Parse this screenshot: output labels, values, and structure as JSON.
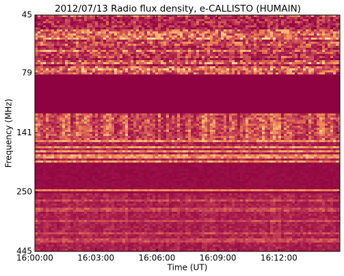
{
  "chart_data": {
    "type": "spectrogram",
    "title": "2012/07/13  Radio flux density, e-CALLISTO (HUMAIN)",
    "xlabel": "Time (UT)",
    "ylabel": "Frequency (MHz)",
    "xlim": [
      "16:00:00",
      "16:15:00"
    ],
    "xticks": [
      "16:00:00",
      "16:03:00",
      "16:06:00",
      "16:09:00",
      "16:12:00"
    ],
    "ylim": [
      45,
      445
    ],
    "yticks": [
      45,
      79,
      141,
      250,
      445
    ],
    "log_scale_y": true,
    "y_inverted": true
  }
}
